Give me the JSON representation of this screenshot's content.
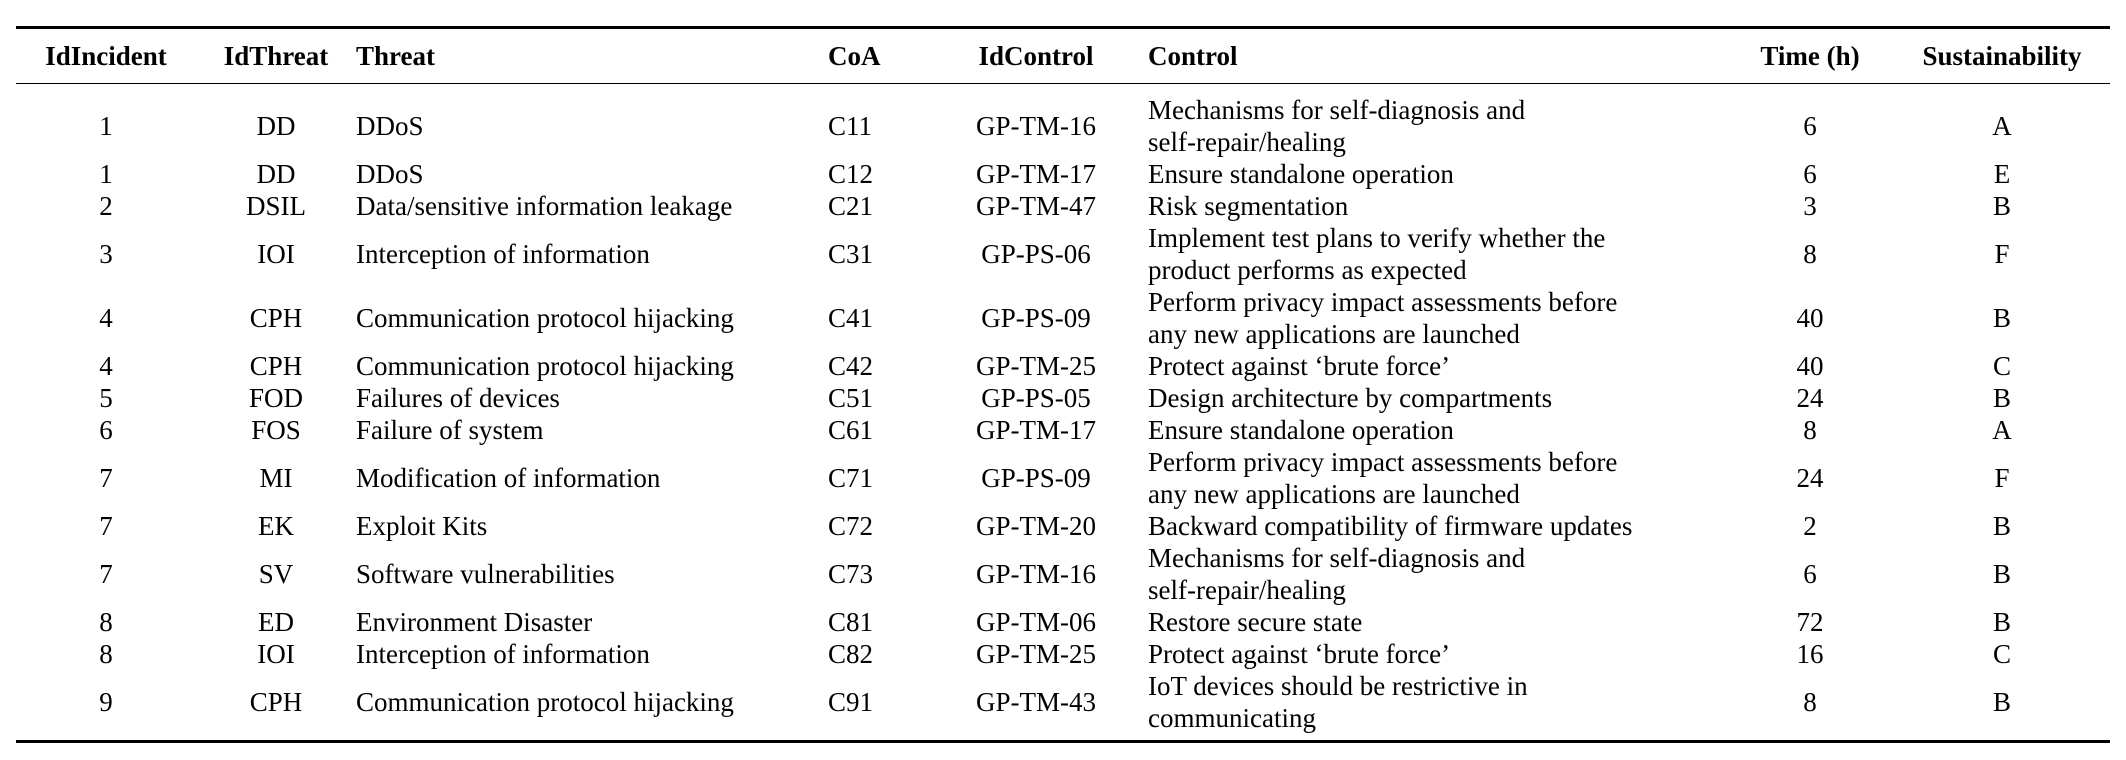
{
  "table": {
    "headers": [
      "IdIncident",
      "IdThreat",
      "Threat",
      "CoA",
      "IdControl",
      "Control",
      "Time (h)",
      "Sustainability"
    ],
    "rows": [
      {
        "id_incident": "1",
        "id_threat": "DD",
        "threat": "DDoS",
        "coa": "C11",
        "id_control": "GP-TM-16",
        "control_lines": [
          "Mechanisms for self-diagnosis and",
          "self-repair/healing"
        ],
        "time": "6",
        "sustainability": "A"
      },
      {
        "id_incident": "1",
        "id_threat": "DD",
        "threat": "DDoS",
        "coa": "C12",
        "id_control": "GP-TM-17",
        "control_lines": [
          "Ensure standalone operation"
        ],
        "time": "6",
        "sustainability": "E"
      },
      {
        "id_incident": "2",
        "id_threat": "DSIL",
        "threat": "Data/sensitive information leakage",
        "coa": "C21",
        "id_control": "GP-TM-47",
        "control_lines": [
          "Risk segmentation"
        ],
        "time": "3",
        "sustainability": "B"
      },
      {
        "id_incident": "3",
        "id_threat": "IOI",
        "threat": "Interception of information",
        "coa": "C31",
        "id_control": "GP-PS-06",
        "control_lines": [
          "Implement test plans to verify whether the",
          "product performs as expected"
        ],
        "time": "8",
        "sustainability": "F"
      },
      {
        "id_incident": "4",
        "id_threat": "CPH",
        "threat": "Communication protocol hijacking",
        "coa": "C41",
        "id_control": "GP-PS-09",
        "control_lines": [
          "Perform privacy impact assessments before",
          "any new applications are launched"
        ],
        "time": "40",
        "sustainability": "B"
      },
      {
        "id_incident": "4",
        "id_threat": "CPH",
        "threat": "Communication protocol hijacking",
        "coa": "C42",
        "id_control": "GP-TM-25",
        "control_lines": [
          "Protect against ‘brute force’"
        ],
        "time": "40",
        "sustainability": "C"
      },
      {
        "id_incident": "5",
        "id_threat": "FOD",
        "threat": "Failures of devices",
        "coa": "C51",
        "id_control": "GP-PS-05",
        "control_lines": [
          "Design architecture by compartments"
        ],
        "time": "24",
        "sustainability": "B"
      },
      {
        "id_incident": "6",
        "id_threat": "FOS",
        "threat": "Failure of system",
        "coa": "C61",
        "id_control": "GP-TM-17",
        "control_lines": [
          "Ensure standalone operation"
        ],
        "time": "8",
        "sustainability": "A"
      },
      {
        "id_incident": "7",
        "id_threat": "MI",
        "threat": "Modification of information",
        "coa": "C71",
        "id_control": "GP-PS-09",
        "control_lines": [
          "Perform privacy impact assessments before",
          "any new applications are launched"
        ],
        "time": "24",
        "sustainability": "F"
      },
      {
        "id_incident": "7",
        "id_threat": "EK",
        "threat": "Exploit Kits",
        "coa": "C72",
        "id_control": "GP-TM-20",
        "control_lines": [
          "Backward compatibility of firmware updates"
        ],
        "time": "2",
        "sustainability": "B"
      },
      {
        "id_incident": "7",
        "id_threat": "SV",
        "threat": "Software vulnerabilities",
        "coa": "C73",
        "id_control": "GP-TM-16",
        "control_lines": [
          "Mechanisms for self-diagnosis and",
          "self-repair/healing"
        ],
        "time": "6",
        "sustainability": "B"
      },
      {
        "id_incident": "8",
        "id_threat": "ED",
        "threat": "Environment Disaster",
        "coa": "C81",
        "id_control": "GP-TM-06",
        "control_lines": [
          "Restore secure state"
        ],
        "time": "72",
        "sustainability": "B"
      },
      {
        "id_incident": "8",
        "id_threat": "IOI",
        "threat": "Interception of information",
        "coa": "C82",
        "id_control": "GP-TM-25",
        "control_lines": [
          "Protect against ‘brute force’"
        ],
        "time": "16",
        "sustainability": "C"
      },
      {
        "id_incident": "9",
        "id_threat": "CPH",
        "threat": "Communication protocol hijacking",
        "coa": "C91",
        "id_control": "GP-TM-43",
        "control_lines": [
          "IoT devices should be restrictive in",
          "communicating"
        ],
        "time": "8",
        "sustainability": "B"
      }
    ]
  }
}
